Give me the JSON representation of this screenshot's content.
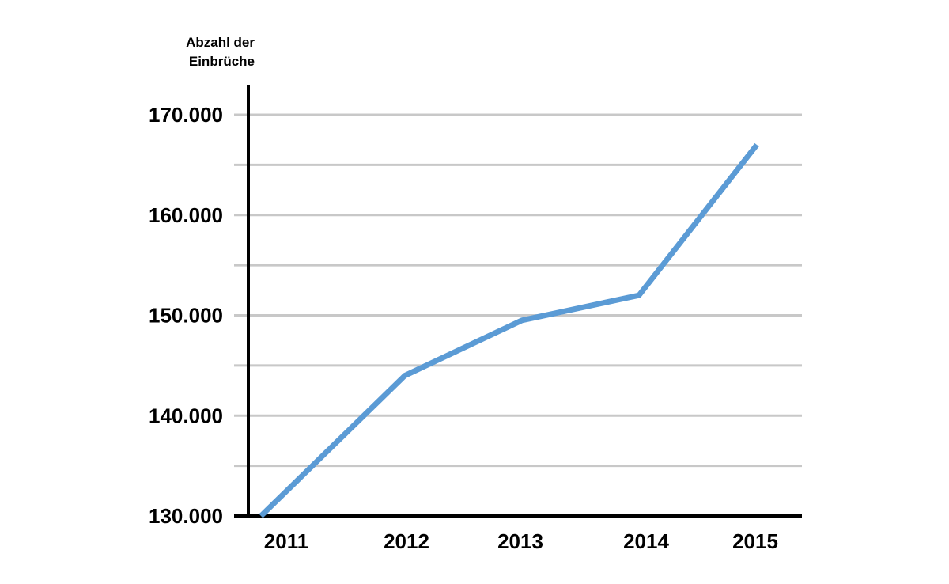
{
  "chart_data": {
    "type": "line",
    "title": "",
    "ylabel_lines": [
      "Abzahl der",
      "Einbrüche"
    ],
    "xlabel": "",
    "categories": [
      "2011",
      "2012",
      "2013",
      "2014",
      "2015"
    ],
    "series": [
      {
        "values": [
          130000,
          144000,
          149500,
          152000,
          167000
        ]
      }
    ],
    "ylim": [
      130000,
      170000
    ],
    "yticks": [
      130000,
      140000,
      150000,
      160000,
      170000
    ],
    "ytick_labels": [
      "130.000",
      "140.000",
      "150.000",
      "160.000",
      "170.000"
    ],
    "minor_gridlines": [
      135000,
      145000,
      155000,
      165000
    ],
    "grid": true,
    "line_color": "#5b9bd5",
    "grid_color": "#c8c8c8",
    "axis_color": "#000000"
  }
}
